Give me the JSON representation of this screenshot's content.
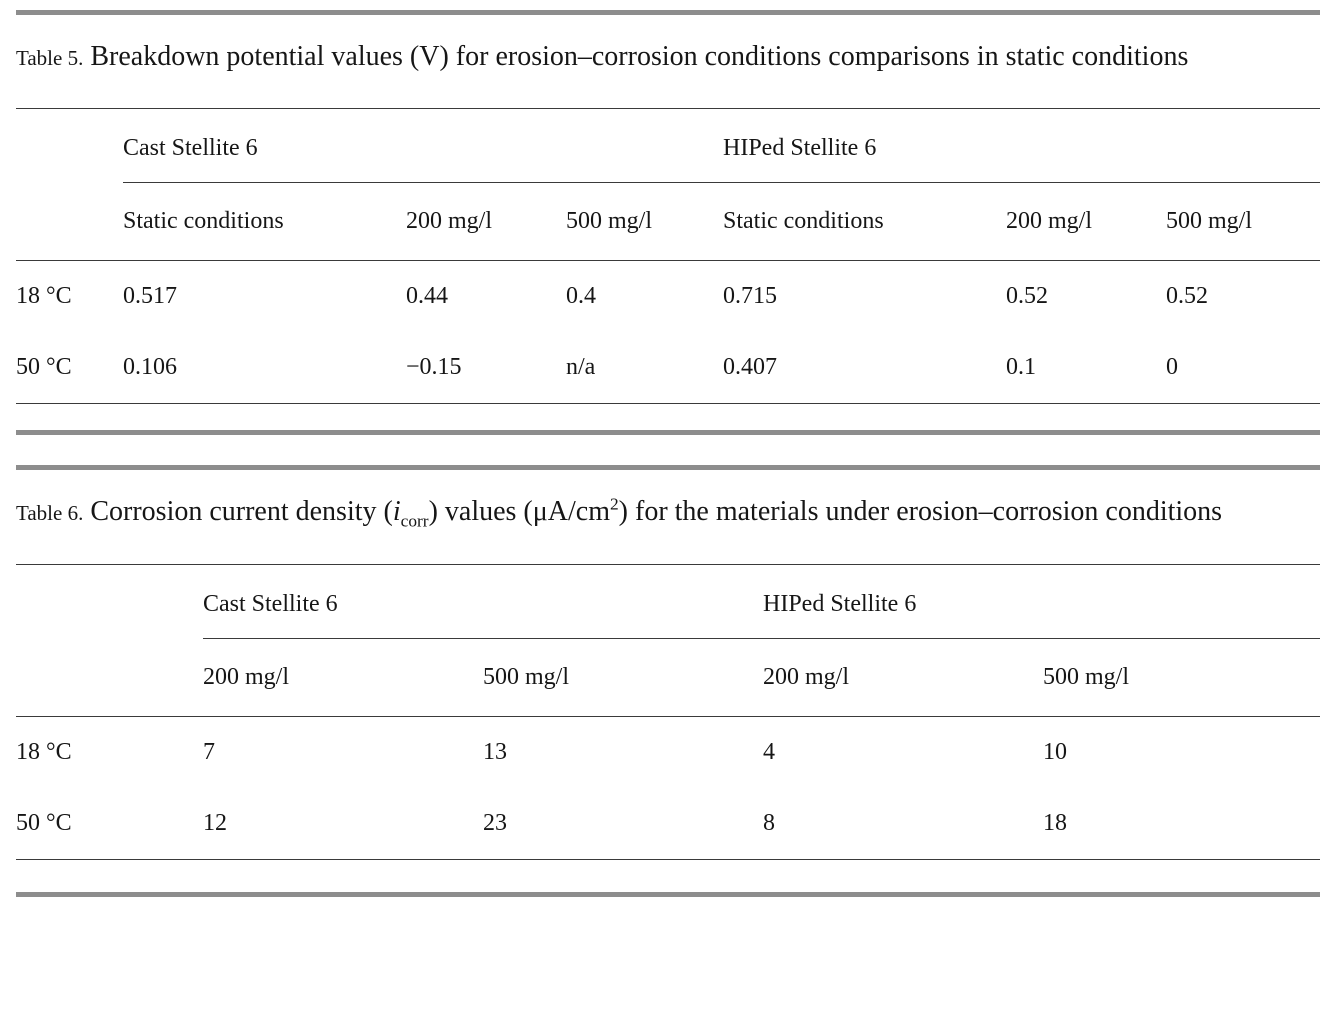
{
  "page": {
    "background": "#ffffff",
    "text_color": "#161616",
    "thick_rule_color": "#8d8d8d",
    "thin_rule_color": "#3a3a3a"
  },
  "table5": {
    "label": "Table 5.",
    "title": "Breakdown potential values (V) for erosion–corrosion conditions comparisons in static conditions",
    "groups": [
      "Cast Stellite 6",
      "HIPed Stellite 6"
    ],
    "subheaders": [
      "Static conditions",
      "200 mg/l",
      "500 mg/l",
      "Static conditions",
      "200 mg/l",
      "500 mg/l"
    ],
    "rows": [
      {
        "label": "18 °C",
        "values": [
          "0.517",
          "0.44",
          "0.4",
          "0.715",
          "0.52",
          "0.52"
        ]
      },
      {
        "label": "50 °C",
        "values": [
          "0.106",
          "−0.15",
          "n/a",
          "0.407",
          "0.1",
          "0"
        ]
      }
    ]
  },
  "table6": {
    "label": "Table 6.",
    "title_pre": "Corrosion current density (",
    "current_variable": "i",
    "current_subscript": "corr",
    "title_mid": ") values (μA/cm",
    "superscript_two": "2",
    "title_post": ") for the materials under erosion–corrosion conditions",
    "groups": [
      "Cast Stellite 6",
      "HIPed Stellite 6"
    ],
    "subheaders": [
      "200 mg/l",
      "500 mg/l",
      "200 mg/l",
      "500 mg/l"
    ],
    "rows": [
      {
        "label": "18 °C",
        "values": [
          "7",
          "13",
          "4",
          "10"
        ]
      },
      {
        "label": "50 °C",
        "values": [
          "12",
          "23",
          "8",
          "18"
        ]
      }
    ]
  }
}
